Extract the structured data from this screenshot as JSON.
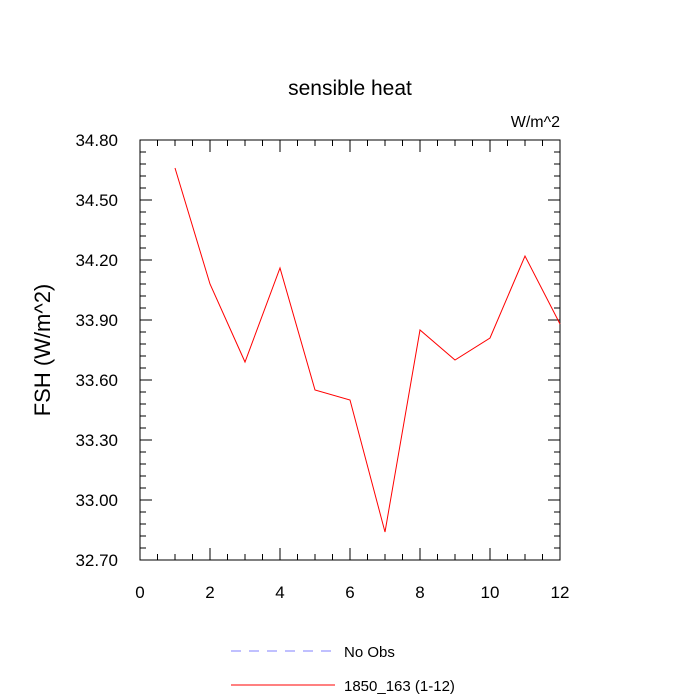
{
  "chart_data": {
    "type": "line",
    "title": "sensible heat",
    "units_label": "W/m^2",
    "ylabel": "FSH  (W/m^2)",
    "xlabel": "",
    "xlim": [
      0,
      12
    ],
    "ylim": [
      32.7,
      34.8
    ],
    "x_ticks": [
      0,
      2,
      4,
      6,
      8,
      10,
      12
    ],
    "x_tick_labels": [
      "0",
      "2",
      "4",
      "6",
      "8",
      "10",
      "12"
    ],
    "y_ticks": [
      32.7,
      33.0,
      33.3,
      33.6,
      33.9,
      34.2,
      34.5,
      34.8
    ],
    "y_tick_labels": [
      "32.70",
      "33.00",
      "33.30",
      "33.60",
      "33.90",
      "34.20",
      "34.50",
      "34.80"
    ],
    "grid": false,
    "legend_position": "bottom",
    "series": [
      {
        "name": "No Obs",
        "color": "#8080ff",
        "dash": "dashed",
        "x": [],
        "y": []
      },
      {
        "name": "1850_163 (1-12)",
        "color": "#ff0000",
        "dash": "solid",
        "x": [
          1,
          2,
          3,
          4,
          5,
          6,
          7,
          8,
          9,
          10,
          11,
          12
        ],
        "y": [
          34.66,
          34.08,
          33.69,
          34.16,
          33.55,
          33.5,
          32.84,
          33.85,
          33.7,
          33.81,
          34.22,
          33.88
        ]
      }
    ]
  }
}
